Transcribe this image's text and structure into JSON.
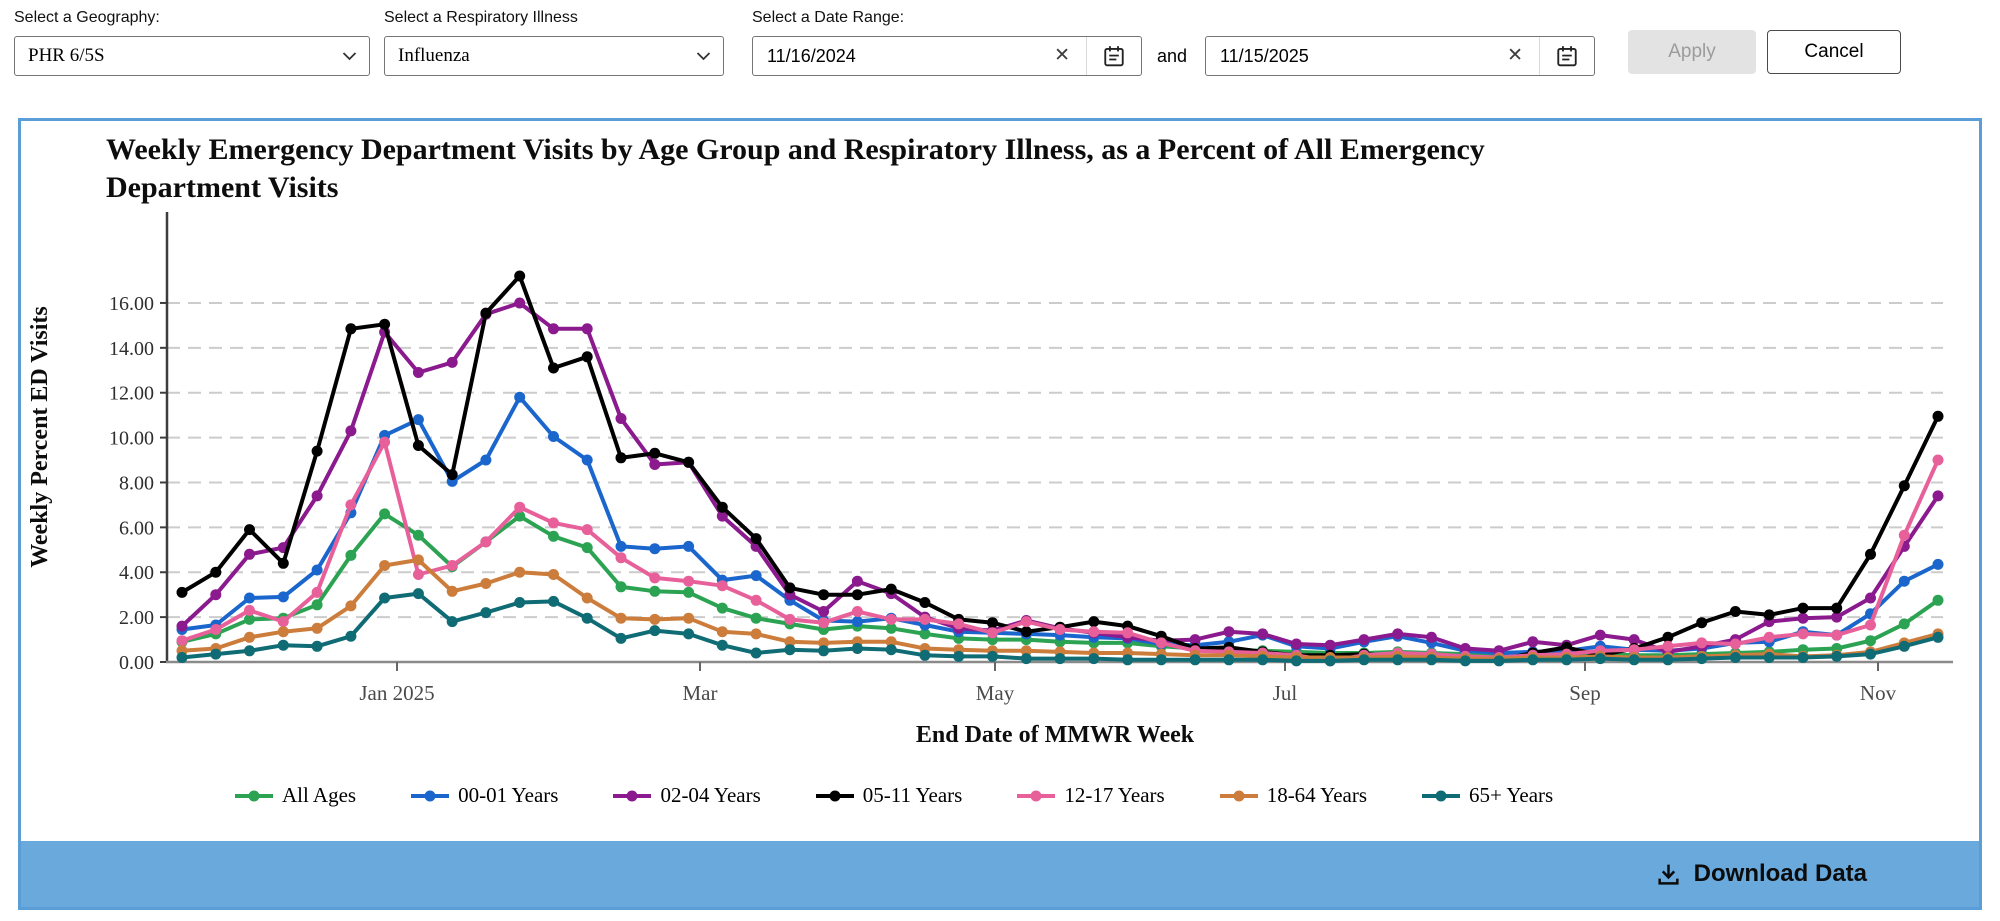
{
  "controls": {
    "geography_label": "Select a Geography:",
    "geography_value": "PHR 6/5S",
    "illness_label": "Select a Respiratory Illness",
    "illness_value": "Influenza",
    "date_range_label": "Select a Date Range:",
    "date_start": "11/16/2024",
    "date_end": "11/15/2025",
    "and_label": "and",
    "clear_icon": "✕",
    "apply_label": "Apply",
    "cancel_label": "Cancel"
  },
  "footer": {
    "download_label": "Download Data"
  },
  "colors": {
    "card_border": "#5b9dd6",
    "footer_bar": "#69a9dc",
    "grid": "#cccccc",
    "y_axis": "#3d3d3d",
    "x_axis": "#8a8a8a"
  },
  "chart_data": {
    "type": "line",
    "title": "Weekly Emergency Department Visits by Age Group and Respiratory Illness, as a Percent of All Emergency Department Visits",
    "xlabel": "End Date of MMWR Week",
    "ylabel": "Weekly Percent ED Visits",
    "ylim": [
      0,
      17.5
    ],
    "y_ticks": [
      "0.00",
      "2.00",
      "4.00",
      "6.00",
      "8.00",
      "10.00",
      "12.00",
      "14.00",
      "16.00"
    ],
    "x_ticks": [
      "Jan 2025",
      "Mar",
      "May",
      "Jul",
      "Sep",
      "Nov"
    ],
    "grid": "horizontal-dashed",
    "legend_position": "bottom",
    "x": [
      "11/16/2024",
      "11/23/2024",
      "11/30/2024",
      "12/07/2024",
      "12/14/2024",
      "12/21/2024",
      "12/28/2024",
      "01/04/2025",
      "01/11/2025",
      "01/18/2025",
      "01/25/2025",
      "02/01/2025",
      "02/08/2025",
      "02/15/2025",
      "02/22/2025",
      "03/01/2025",
      "03/08/2025",
      "03/15/2025",
      "03/22/2025",
      "03/29/2025",
      "04/05/2025",
      "04/12/2025",
      "04/19/2025",
      "04/26/2025",
      "05/03/2025",
      "05/10/2025",
      "05/17/2025",
      "05/24/2025",
      "05/31/2025",
      "06/07/2025",
      "06/14/2025",
      "06/21/2025",
      "06/28/2025",
      "07/05/2025",
      "07/12/2025",
      "07/19/2025",
      "07/26/2025",
      "08/02/2025",
      "08/09/2025",
      "08/16/2025",
      "08/23/2025",
      "08/30/2025",
      "09/06/2025",
      "09/13/2025",
      "09/20/2025",
      "09/27/2025",
      "10/04/2025",
      "10/11/2025",
      "10/18/2025",
      "10/25/2025",
      "11/01/2025",
      "11/08/2025",
      "11/15/2025"
    ],
    "series": [
      {
        "name": "All Ages",
        "color": "#2ba352",
        "values": [
          0.9,
          1.25,
          1.9,
          1.95,
          2.55,
          4.75,
          6.6,
          5.65,
          4.25,
          5.35,
          6.5,
          5.6,
          5.1,
          3.35,
          3.15,
          3.1,
          2.4,
          1.95,
          1.7,
          1.45,
          1.6,
          1.5,
          1.25,
          1.05,
          1.0,
          1.0,
          0.9,
          0.85,
          0.85,
          0.7,
          0.6,
          0.55,
          0.5,
          0.45,
          0.4,
          0.4,
          0.45,
          0.4,
          0.35,
          0.3,
          0.3,
          0.35,
          0.35,
          0.3,
          0.3,
          0.35,
          0.4,
          0.45,
          0.55,
          0.6,
          0.95,
          1.7,
          2.75
        ]
      },
      {
        "name": "00-01 Years",
        "color": "#1b66cc",
        "values": [
          1.45,
          1.65,
          2.85,
          2.9,
          4.1,
          6.65,
          10.1,
          10.8,
          8.05,
          9.0,
          11.8,
          10.05,
          9.0,
          5.15,
          5.05,
          5.15,
          3.65,
          3.85,
          2.75,
          1.85,
          1.8,
          1.95,
          1.65,
          1.35,
          1.3,
          1.25,
          1.2,
          1.1,
          1.05,
          0.8,
          0.75,
          0.9,
          1.2,
          0.7,
          0.6,
          0.9,
          1.15,
          0.85,
          0.5,
          0.4,
          0.45,
          0.5,
          0.7,
          0.55,
          0.5,
          0.6,
          0.85,
          0.9,
          1.35,
          1.2,
          2.15,
          3.6,
          4.35
        ]
      },
      {
        "name": "02-04 Years",
        "color": "#8a1a8d",
        "values": [
          1.6,
          3.0,
          4.8,
          5.1,
          7.4,
          10.3,
          14.7,
          12.9,
          13.35,
          15.5,
          16.0,
          14.85,
          14.85,
          10.85,
          8.8,
          8.9,
          6.5,
          5.15,
          3.0,
          2.25,
          3.6,
          3.05,
          2.0,
          1.5,
          1.4,
          1.85,
          1.5,
          1.3,
          1.1,
          0.95,
          1.0,
          1.35,
          1.25,
          0.8,
          0.75,
          1.0,
          1.25,
          1.1,
          0.6,
          0.5,
          0.9,
          0.75,
          1.2,
          1.0,
          0.45,
          0.7,
          1.0,
          1.8,
          1.95,
          2.0,
          2.85,
          5.15,
          7.4
        ]
      },
      {
        "name": "05-11 Years",
        "color": "#000000",
        "values": [
          3.1,
          4.0,
          5.9,
          4.4,
          9.4,
          14.85,
          15.05,
          9.65,
          8.35,
          15.55,
          17.2,
          13.1,
          13.6,
          9.1,
          9.3,
          8.9,
          6.9,
          5.5,
          3.3,
          3.0,
          3.0,
          3.25,
          2.65,
          1.9,
          1.75,
          1.35,
          1.55,
          1.8,
          1.6,
          1.15,
          0.6,
          0.65,
          0.45,
          0.3,
          0.3,
          0.35,
          0.3,
          0.25,
          0.2,
          0.1,
          0.4,
          0.65,
          0.3,
          0.6,
          1.1,
          1.75,
          2.25,
          2.1,
          2.4,
          2.4,
          4.8,
          7.85,
          10.95
        ]
      },
      {
        "name": "12-17 Years",
        "color": "#e7609a",
        "values": [
          0.95,
          1.45,
          2.3,
          1.8,
          3.1,
          7.0,
          9.8,
          3.9,
          4.3,
          5.35,
          6.9,
          6.2,
          5.9,
          4.65,
          3.75,
          3.6,
          3.4,
          2.75,
          1.9,
          1.75,
          2.25,
          1.9,
          1.9,
          1.7,
          1.3,
          1.8,
          1.45,
          1.35,
          1.3,
          0.85,
          0.5,
          0.45,
          0.4,
          0.3,
          0.05,
          0.3,
          0.4,
          0.35,
          0.25,
          0.2,
          0.3,
          0.35,
          0.5,
          0.55,
          0.7,
          0.85,
          0.8,
          1.1,
          1.25,
          1.2,
          1.65,
          5.65,
          9.0
        ]
      },
      {
        "name": "18-64 Years",
        "color": "#cc7d3c",
        "values": [
          0.5,
          0.6,
          1.1,
          1.35,
          1.5,
          2.5,
          4.3,
          4.55,
          3.15,
          3.5,
          4.0,
          3.9,
          2.85,
          1.95,
          1.9,
          1.95,
          1.35,
          1.25,
          0.9,
          0.85,
          0.9,
          0.9,
          0.6,
          0.55,
          0.5,
          0.5,
          0.45,
          0.4,
          0.4,
          0.35,
          0.3,
          0.3,
          0.25,
          0.2,
          0.2,
          0.2,
          0.25,
          0.2,
          0.15,
          0.15,
          0.2,
          0.2,
          0.25,
          0.2,
          0.2,
          0.25,
          0.3,
          0.35,
          0.25,
          0.3,
          0.45,
          0.85,
          1.25
        ]
      },
      {
        "name": "65+ Years",
        "color": "#0f6b74",
        "values": [
          0.2,
          0.35,
          0.5,
          0.75,
          0.7,
          1.15,
          2.85,
          3.05,
          1.8,
          2.2,
          2.65,
          2.7,
          1.95,
          1.05,
          1.4,
          1.25,
          0.75,
          0.4,
          0.55,
          0.5,
          0.6,
          0.55,
          0.3,
          0.25,
          0.25,
          0.15,
          0.15,
          0.15,
          0.1,
          0.1,
          0.1,
          0.1,
          0.1,
          0.05,
          0.05,
          0.1,
          0.1,
          0.1,
          0.05,
          0.05,
          0.1,
          0.1,
          0.15,
          0.1,
          0.1,
          0.15,
          0.2,
          0.2,
          0.2,
          0.25,
          0.35,
          0.7,
          1.1
        ]
      }
    ]
  }
}
